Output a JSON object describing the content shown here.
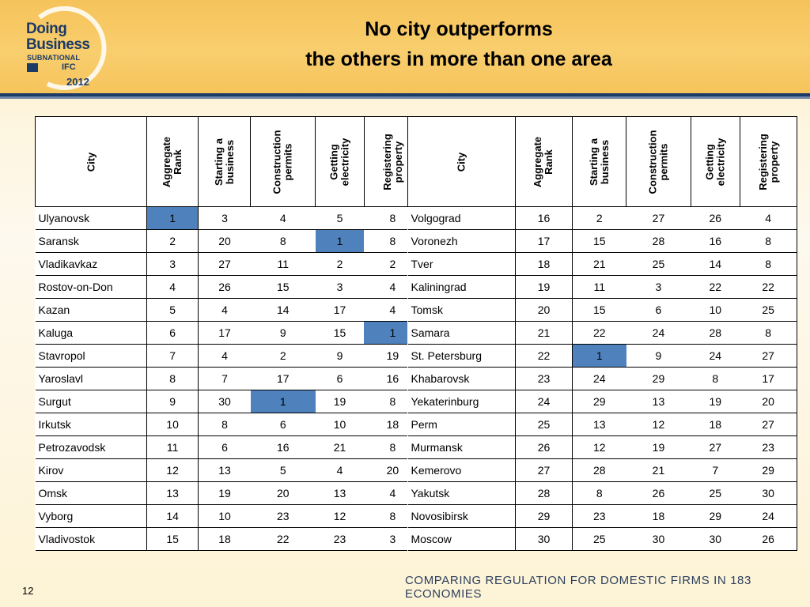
{
  "logo": {
    "line1": "Doing",
    "line2": "Business",
    "line3": "SUBNATIONAL",
    "partner": "IFC",
    "year": "2012"
  },
  "title": {
    "line1": "No city outperforms",
    "line2": "the others in more than one area"
  },
  "table": {
    "headers": {
      "city": "City",
      "aggregate_rank_1": "Aggregate",
      "aggregate_rank_2": "Rank",
      "starting_1": "Starting a",
      "starting_2": "business",
      "construction_1": "Construction",
      "construction_2": "permits",
      "electricity_1": "Getting",
      "electricity_2": "electricity",
      "property_1": "Registering",
      "property_2": "property"
    },
    "left_rows": [
      {
        "city": "Ulyanovsk",
        "aggregate": "1",
        "starting": "3",
        "construction": "4",
        "electricity": "5",
        "property": "8"
      },
      {
        "city": "Saransk",
        "aggregate": "2",
        "starting": "20",
        "construction": "8",
        "electricity": "1",
        "property": "8"
      },
      {
        "city": "Vladikavkaz",
        "aggregate": "3",
        "starting": "27",
        "construction": "11",
        "electricity": "2",
        "property": "2"
      },
      {
        "city": "Rostov-on-Don",
        "aggregate": "4",
        "starting": "26",
        "construction": "15",
        "electricity": "3",
        "property": "4"
      },
      {
        "city": "Kazan",
        "aggregate": "5",
        "starting": "4",
        "construction": "14",
        "electricity": "17",
        "property": "4"
      },
      {
        "city": "Kaluga",
        "aggregate": "6",
        "starting": "17",
        "construction": "9",
        "electricity": "15",
        "property": "1"
      },
      {
        "city": "Stavropol",
        "aggregate": "7",
        "starting": "4",
        "construction": "2",
        "electricity": "9",
        "property": "19"
      },
      {
        "city": "Yaroslavl",
        "aggregate": "8",
        "starting": "7",
        "construction": "17",
        "electricity": "6",
        "property": "16"
      },
      {
        "city": "Surgut",
        "aggregate": "9",
        "starting": "30",
        "construction": "1",
        "electricity": "19",
        "property": "8"
      },
      {
        "city": "Irkutsk",
        "aggregate": "10",
        "starting": "8",
        "construction": "6",
        "electricity": "10",
        "property": "18"
      },
      {
        "city": "Petrozavodsk",
        "aggregate": "11",
        "starting": "6",
        "construction": "16",
        "electricity": "21",
        "property": "8"
      },
      {
        "city": "Kirov",
        "aggregate": "12",
        "starting": "13",
        "construction": "5",
        "electricity": "4",
        "property": "20"
      },
      {
        "city": "Omsk",
        "aggregate": "13",
        "starting": "19",
        "construction": "20",
        "electricity": "13",
        "property": "4"
      },
      {
        "city": "Vyborg",
        "aggregate": "14",
        "starting": "10",
        "construction": "23",
        "electricity": "12",
        "property": "8"
      },
      {
        "city": "Vladivostok",
        "aggregate": "15",
        "starting": "18",
        "construction": "22",
        "electricity": "23",
        "property": "3"
      }
    ],
    "right_rows": [
      {
        "city": "Volgograd",
        "aggregate": "16",
        "starting": "2",
        "construction": "27",
        "electricity": "26",
        "property": "4"
      },
      {
        "city": "Voronezh",
        "aggregate": "17",
        "starting": "15",
        "construction": "28",
        "electricity": "16",
        "property": "8"
      },
      {
        "city": "Tver",
        "aggregate": "18",
        "starting": "21",
        "construction": "25",
        "electricity": "14",
        "property": "8"
      },
      {
        "city": "Kaliningrad",
        "aggregate": "19",
        "starting": "11",
        "construction": "3",
        "electricity": "22",
        "property": "22"
      },
      {
        "city": "Tomsk",
        "aggregate": "20",
        "starting": "15",
        "construction": "6",
        "electricity": "10",
        "property": "25"
      },
      {
        "city": "Samara",
        "aggregate": "21",
        "starting": "22",
        "construction": "24",
        "electricity": "28",
        "property": "8"
      },
      {
        "city": "St. Petersburg",
        "aggregate": "22",
        "starting": "1",
        "construction": "9",
        "electricity": "24",
        "property": "27"
      },
      {
        "city": "Khabarovsk",
        "aggregate": "23",
        "starting": "24",
        "construction": "29",
        "electricity": "8",
        "property": "17"
      },
      {
        "city": "Yekaterinburg",
        "aggregate": "24",
        "starting": "29",
        "construction": "13",
        "electricity": "19",
        "property": "20"
      },
      {
        "city": "Perm",
        "aggregate": "25",
        "starting": "13",
        "construction": "12",
        "electricity": "18",
        "property": "27"
      },
      {
        "city": "Murmansk",
        "aggregate": "26",
        "starting": "12",
        "construction": "19",
        "electricity": "27",
        "property": "23"
      },
      {
        "city": "Kemerovo",
        "aggregate": "27",
        "starting": "28",
        "construction": "21",
        "electricity": "7",
        "property": "29"
      },
      {
        "city": "Yakutsk",
        "aggregate": "28",
        "starting": "8",
        "construction": "26",
        "electricity": "25",
        "property": "30"
      },
      {
        "city": "Novosibirsk",
        "aggregate": "29",
        "starting": "23",
        "construction": "18",
        "electricity": "29",
        "property": "24"
      },
      {
        "city": "Moscow",
        "aggregate": "30",
        "starting": "25",
        "construction": "30",
        "electricity": "30",
        "property": "26"
      }
    ],
    "highlight_color": "#4f81bd"
  },
  "footer": {
    "page_number": "12",
    "tagline": "COMPARING REGULATION FOR DOMESTIC FIRMS IN 183 ECONOMIES"
  }
}
